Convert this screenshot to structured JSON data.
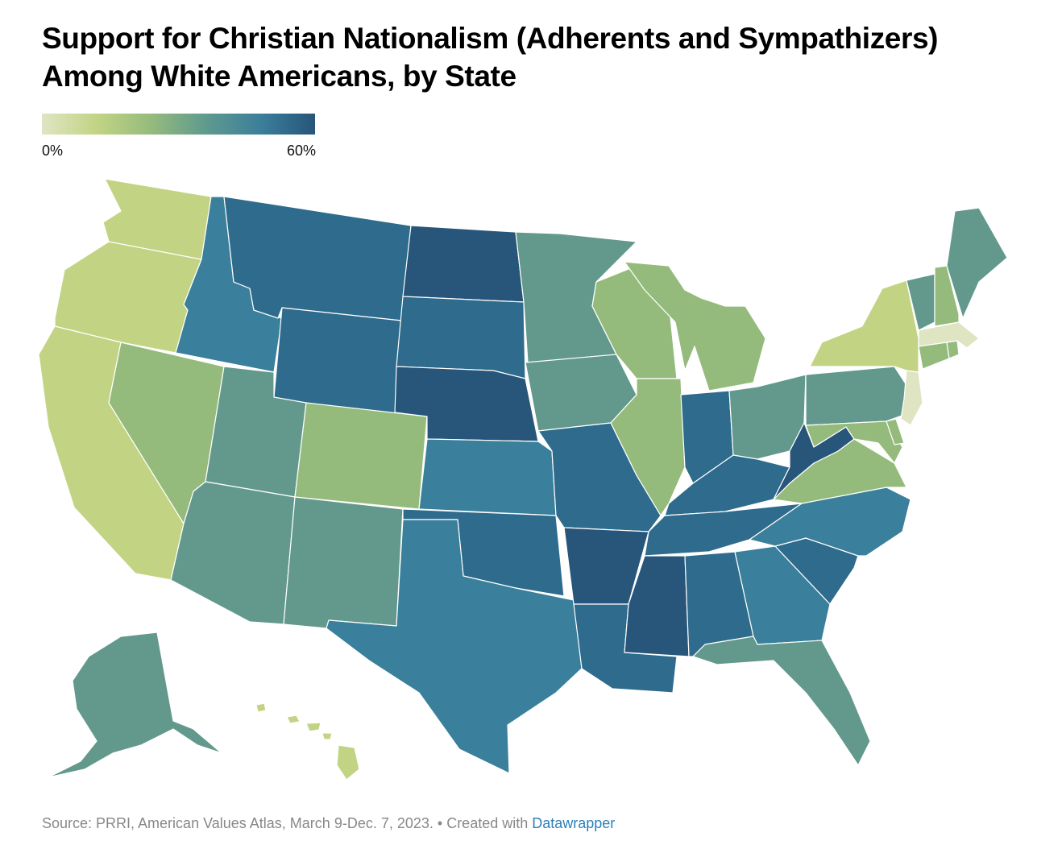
{
  "title": "Support for Christian Nationalism (Adherents and Sympathizers) Among White Americans, by State",
  "legend": {
    "min_label": "0%",
    "max_label": "60%",
    "min": 0,
    "max": 60
  },
  "footer": {
    "source": "Source: PRRI, American Values Atlas, March 9-Dec. 7, 2023. • Created with ",
    "link_text": "Datawrapper"
  },
  "colors": {
    "scale": [
      "#dfe5c3",
      "#c2d484",
      "#95bb7c",
      "#63998c",
      "#3a7f9b",
      "#2f6b8c",
      "#28557a"
    ],
    "border": "#ffffff"
  },
  "states": [
    {
      "id": "WA",
      "level": "c2"
    },
    {
      "id": "OR",
      "level": "c2"
    },
    {
      "id": "CA",
      "level": "c2"
    },
    {
      "id": "NV",
      "level": "c3"
    },
    {
      "id": "ID",
      "level": "c5"
    },
    {
      "id": "MT",
      "level": "c6"
    },
    {
      "id": "WY",
      "level": "c6"
    },
    {
      "id": "UT",
      "level": "c4"
    },
    {
      "id": "AZ",
      "level": "c4"
    },
    {
      "id": "CO",
      "level": "c3"
    },
    {
      "id": "NM",
      "level": "c4"
    },
    {
      "id": "ND",
      "level": "c7"
    },
    {
      "id": "SD",
      "level": "c6"
    },
    {
      "id": "NE",
      "level": "c7"
    },
    {
      "id": "KS",
      "level": "c5"
    },
    {
      "id": "OK",
      "level": "c6"
    },
    {
      "id": "TX",
      "level": "c5"
    },
    {
      "id": "MN",
      "level": "c4"
    },
    {
      "id": "IA",
      "level": "c4"
    },
    {
      "id": "MO",
      "level": "c6"
    },
    {
      "id": "AR",
      "level": "c7"
    },
    {
      "id": "LA",
      "level": "c6"
    },
    {
      "id": "WI",
      "level": "c3"
    },
    {
      "id": "IL",
      "level": "c3"
    },
    {
      "id": "MI",
      "level": "c3"
    },
    {
      "id": "IN",
      "level": "c6"
    },
    {
      "id": "OH",
      "level": "c4"
    },
    {
      "id": "KY",
      "level": "c6"
    },
    {
      "id": "TN",
      "level": "c6"
    },
    {
      "id": "MS",
      "level": "c7"
    },
    {
      "id": "AL",
      "level": "c6"
    },
    {
      "id": "GA",
      "level": "c5"
    },
    {
      "id": "FL",
      "level": "c4"
    },
    {
      "id": "SC",
      "level": "c6"
    },
    {
      "id": "NC",
      "level": "c5"
    },
    {
      "id": "VA",
      "level": "c3"
    },
    {
      "id": "WV",
      "level": "c7"
    },
    {
      "id": "PA",
      "level": "c4"
    },
    {
      "id": "NY",
      "level": "c2"
    },
    {
      "id": "VT",
      "level": "c4"
    },
    {
      "id": "NH",
      "level": "c3"
    },
    {
      "id": "ME",
      "level": "c4"
    },
    {
      "id": "MA",
      "level": "c1"
    },
    {
      "id": "CT",
      "level": "c3"
    },
    {
      "id": "RI",
      "level": "c3"
    },
    {
      "id": "NJ",
      "level": "c1"
    },
    {
      "id": "DE",
      "level": "c3"
    },
    {
      "id": "MD",
      "level": "c3"
    },
    {
      "id": "AK",
      "level": "c4"
    },
    {
      "id": "HI",
      "level": "c2"
    }
  ]
}
